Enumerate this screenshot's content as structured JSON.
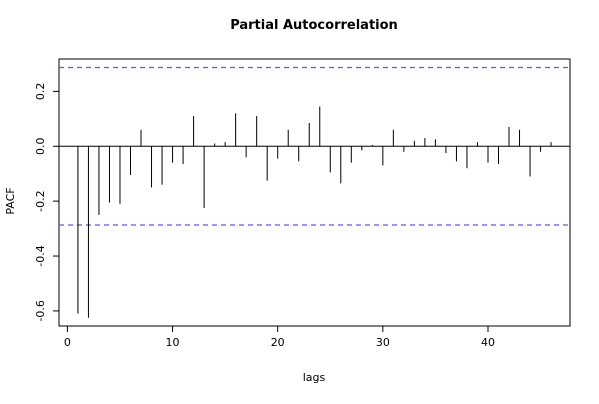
{
  "chart_data": {
    "type": "bar",
    "title": "Partial Autocorrelation",
    "xlabel": "lags",
    "ylabel": "PACF",
    "xlim": [
      -0.8,
      47.8
    ],
    "ylim": [
      -0.655,
      0.318
    ],
    "x_ticks": [
      0,
      10,
      20,
      30,
      40
    ],
    "y_ticks": [
      -0.6,
      -0.4,
      -0.2,
      0.0,
      0.2
    ],
    "y_tick_labels": [
      "-0.6",
      "-0.4",
      "-0.2",
      "0.0",
      "0.2"
    ],
    "x_tick_labels": [
      "0",
      "10",
      "20",
      "30",
      "40"
    ],
    "confidence_bound": 0.287,
    "confidence_line_color": "#5a5ae6",
    "lags": [
      1,
      2,
      3,
      4,
      5,
      6,
      7,
      8,
      9,
      10,
      11,
      12,
      13,
      14,
      15,
      16,
      17,
      18,
      19,
      20,
      21,
      22,
      23,
      24,
      25,
      26,
      27,
      28,
      29,
      30,
      31,
      32,
      33,
      34,
      35,
      36,
      37,
      38,
      39,
      40,
      41,
      42,
      43,
      44,
      45,
      46
    ],
    "values": [
      -0.61,
      -0.625,
      -0.25,
      -0.205,
      -0.21,
      -0.105,
      0.06,
      -0.15,
      -0.14,
      -0.06,
      -0.065,
      0.11,
      -0.225,
      0.01,
      0.015,
      0.12,
      -0.04,
      0.11,
      -0.125,
      -0.045,
      0.06,
      -0.055,
      0.085,
      0.145,
      -0.095,
      -0.135,
      -0.06,
      -0.015,
      0.005,
      -0.07,
      0.06,
      -0.02,
      0.02,
      0.03,
      0.025,
      -0.025,
      -0.055,
      -0.08,
      0.015,
      -0.06,
      -0.065,
      0.07,
      0.06,
      -0.11,
      -0.02,
      0.015
    ],
    "grid": false,
    "legend": "none"
  }
}
